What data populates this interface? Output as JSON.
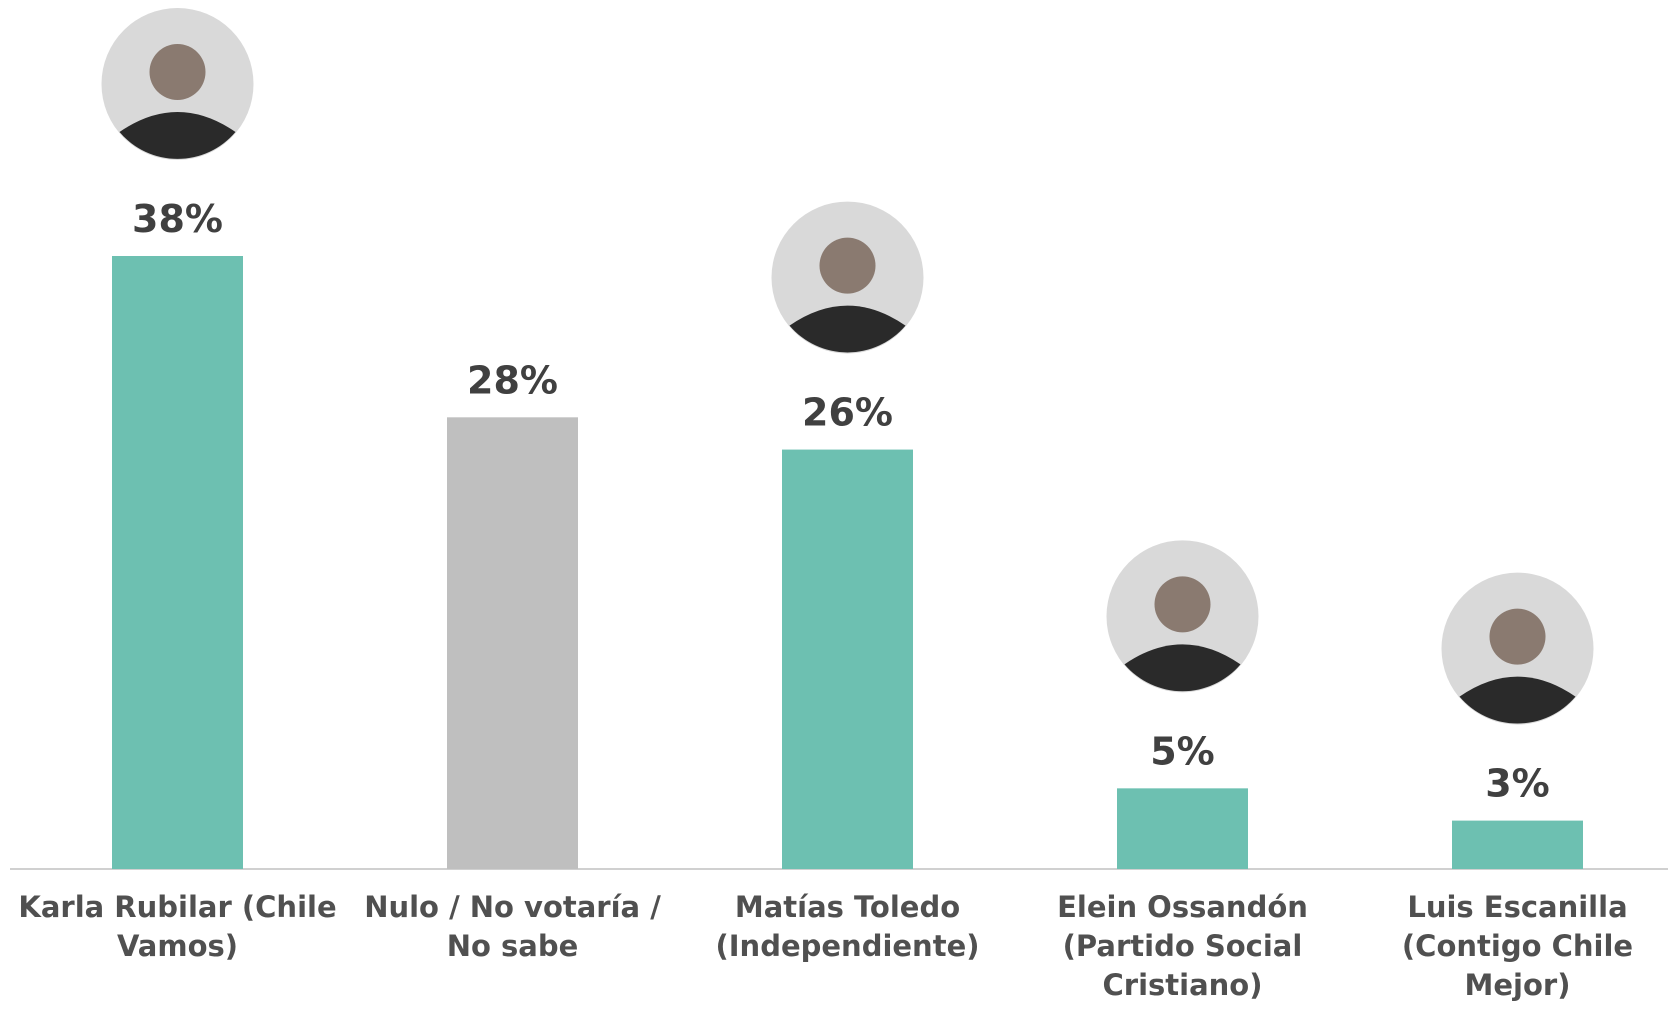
{
  "chart_data": {
    "type": "bar",
    "categories": [
      "Karla Rubilar (Chile Vamos)",
      "Nulo / No votaría / No sabe",
      "Matías Toledo (Independiente)",
      "Elein Ossandón (Partido Social Cristiano)",
      "Luis Escanilla (Contigo Chile Mejor)"
    ],
    "values": [
      38,
      28,
      26,
      5,
      3
    ],
    "value_labels": [
      "38%",
      "28%",
      "26%",
      "5%",
      "3%"
    ],
    "colors": [
      "#6dc0b1",
      "#bfbfbf",
      "#6dc0b1",
      "#6dc0b1",
      "#6dc0b1"
    ]
  }
}
